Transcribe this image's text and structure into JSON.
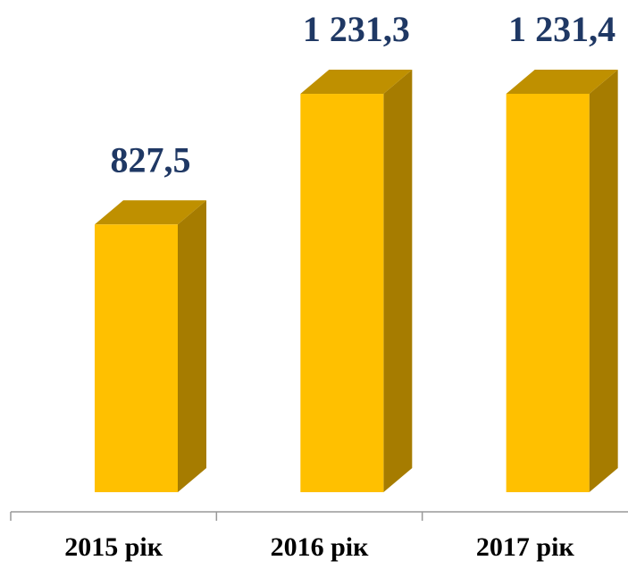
{
  "chart_data": {
    "type": "bar3d",
    "categories": [
      "2015 рік",
      "2016 рік",
      "2017 рік"
    ],
    "values": [
      827.5,
      1231.3,
      1231.4
    ],
    "value_labels": [
      "827,5",
      "1 231,3",
      "1 231,4"
    ],
    "color": "#FFC000"
  }
}
